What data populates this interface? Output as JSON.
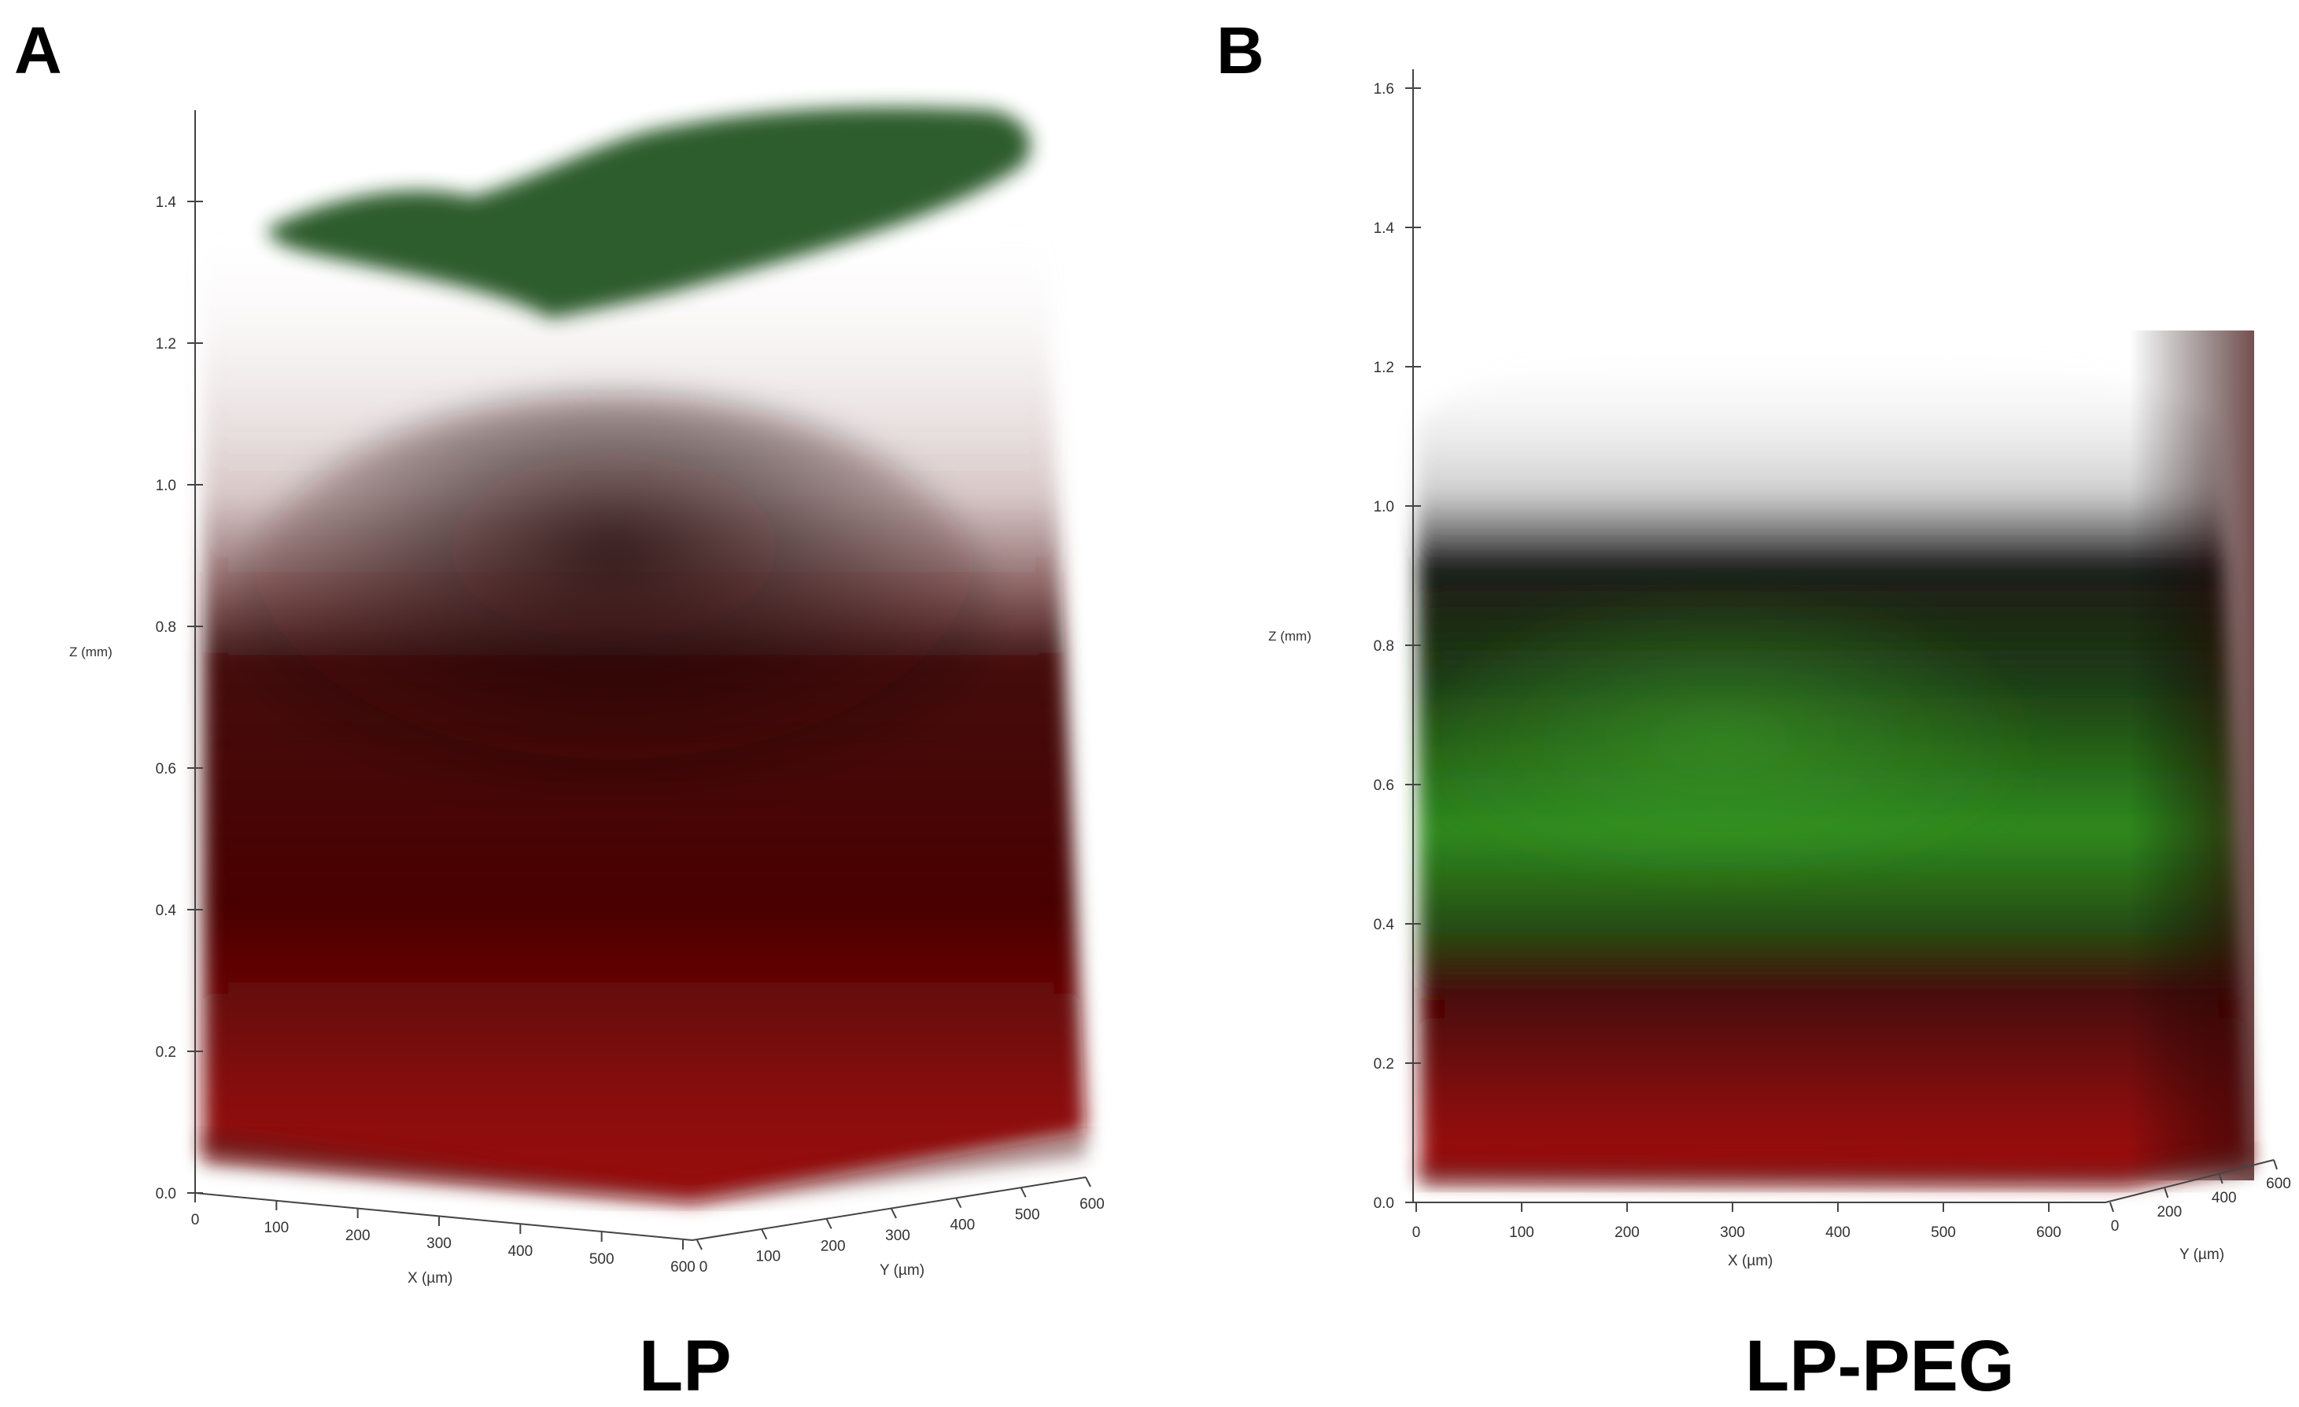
{
  "figure": {
    "panel_a": {
      "letter": "A",
      "caption": "LP",
      "z_axis": {
        "label": "Z (mm)",
        "ticks": [
          "0.0",
          "0.2",
          "0.4",
          "0.6",
          "0.8",
          "1.0",
          "1.2",
          "1.4"
        ]
      },
      "x_axis": {
        "label": "X (µm)",
        "ticks": [
          "0",
          "100",
          "200",
          "300",
          "400",
          "500",
          "600"
        ]
      },
      "y_axis": {
        "label": "Y (µm)",
        "ticks": [
          "0",
          "100",
          "200",
          "300",
          "400",
          "500",
          "600"
        ]
      }
    },
    "panel_b": {
      "letter": "B",
      "caption": "LP-PEG",
      "z_axis": {
        "label": "Z (mm)",
        "ticks": [
          "0.0",
          "0.2",
          "0.4",
          "0.6",
          "0.8",
          "1.0",
          "1.2",
          "1.4",
          "1.6"
        ]
      },
      "x_axis": {
        "label": "X (µm)",
        "ticks": [
          "0",
          "100",
          "200",
          "300",
          "400",
          "500",
          "600"
        ]
      },
      "y_axis": {
        "label": "Y (µm)",
        "ticks": [
          "0",
          "200",
          "400",
          "600"
        ]
      }
    },
    "colors": {
      "red_channel": "#8a0a0a",
      "green_channel": "#2e8a1e",
      "dark_green": "#1f4f1a"
    }
  }
}
